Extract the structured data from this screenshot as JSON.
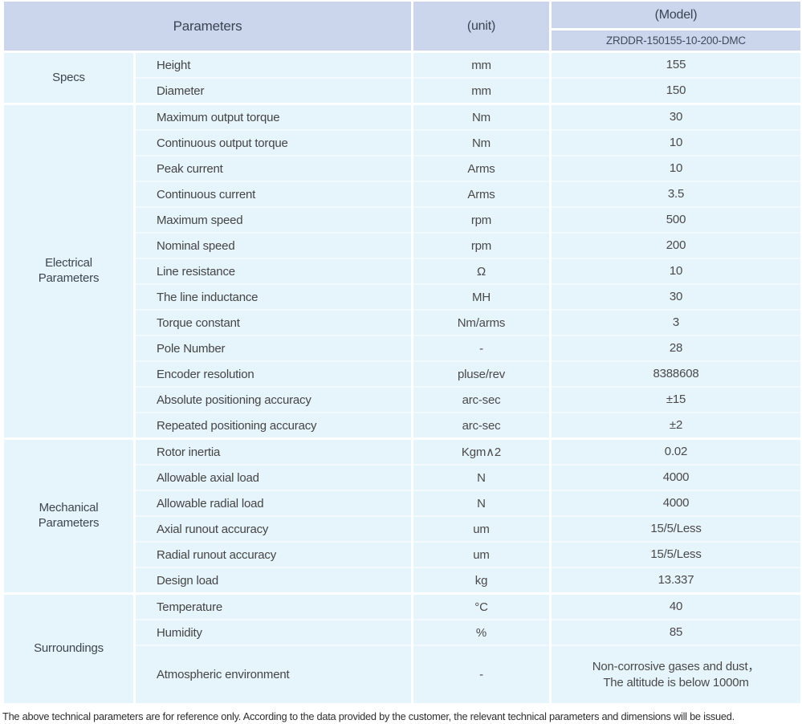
{
  "colors": {
    "header_bg": "#cbd6ec",
    "row_bg": "#e6f4fb",
    "separator": "#ffffff",
    "header_text": "#3c4454",
    "body_text": "#454545"
  },
  "header": {
    "parameters_label": "Parameters",
    "unit_label": "(unit)",
    "model_label": "(Model)",
    "model_value": "ZRDDR-150155-10-200-DMC"
  },
  "groups": [
    {
      "name": "Specs",
      "rows": [
        {
          "param": "Height",
          "unit": "mm",
          "value": "155"
        },
        {
          "param": "Diameter",
          "unit": "mm",
          "value": "150"
        }
      ]
    },
    {
      "name": "Electrical\nParameters",
      "rows": [
        {
          "param": "Maximum output torque",
          "unit": "Nm",
          "value": "30"
        },
        {
          "param": "Continuous output torque",
          "unit": "Nm",
          "value": "10"
        },
        {
          "param": "Peak current",
          "unit": "Arms",
          "value": "10"
        },
        {
          "param": "Continuous current",
          "unit": "Arms",
          "value": "3.5"
        },
        {
          "param": "Maximum speed",
          "unit": "rpm",
          "value": "500"
        },
        {
          "param": "Nominal speed",
          "unit": "rpm",
          "value": "200"
        },
        {
          "param": "Line resistance",
          "unit": "Ω",
          "value": "10"
        },
        {
          "param": "The line inductance",
          "unit": "MH",
          "value": "30"
        },
        {
          "param": "Torque constant",
          "unit": "Nm/arms",
          "value": "3"
        },
        {
          "param": "Pole Number",
          "unit": "-",
          "value": "28"
        },
        {
          "param": "Encoder resolution",
          "unit": "pluse/rev",
          "value": "8388608"
        },
        {
          "param": "Absolute positioning accuracy",
          "unit": "arc-sec",
          "value": "±15"
        },
        {
          "param": "Repeated positioning accuracy",
          "unit": "arc-sec",
          "value": "±2"
        }
      ]
    },
    {
      "name": "Mechanical\nParameters",
      "rows": [
        {
          "param": "Rotor inertia",
          "unit": "Kgm∧2",
          "value": "0.02"
        },
        {
          "param": "Allowable axial load",
          "unit": "N",
          "value": "4000"
        },
        {
          "param": "Allowable radial load",
          "unit": "N",
          "value": "4000"
        },
        {
          "param": "Axial runout accuracy",
          "unit": "um",
          "value": "15/5/Less"
        },
        {
          "param": "Radial runout accuracy",
          "unit": "um",
          "value": "15/5/Less"
        },
        {
          "param": "Design load",
          "unit": "kg",
          "value": "13.337"
        }
      ]
    },
    {
      "name": "Surroundings",
      "rows": [
        {
          "param": "Temperature",
          "unit": "°C",
          "value": "40"
        },
        {
          "param": "Humidity",
          "unit": "%",
          "value": "85"
        },
        {
          "param": "Atmospheric environment",
          "unit": "-",
          "value": "Non-corrosive gases and dust，\nThe altitude is below 1000m"
        }
      ]
    }
  ],
  "footer_note": "The above technical parameters are for reference only. According to the data provided by the customer, the relevant technical parameters and dimensions will be issued."
}
